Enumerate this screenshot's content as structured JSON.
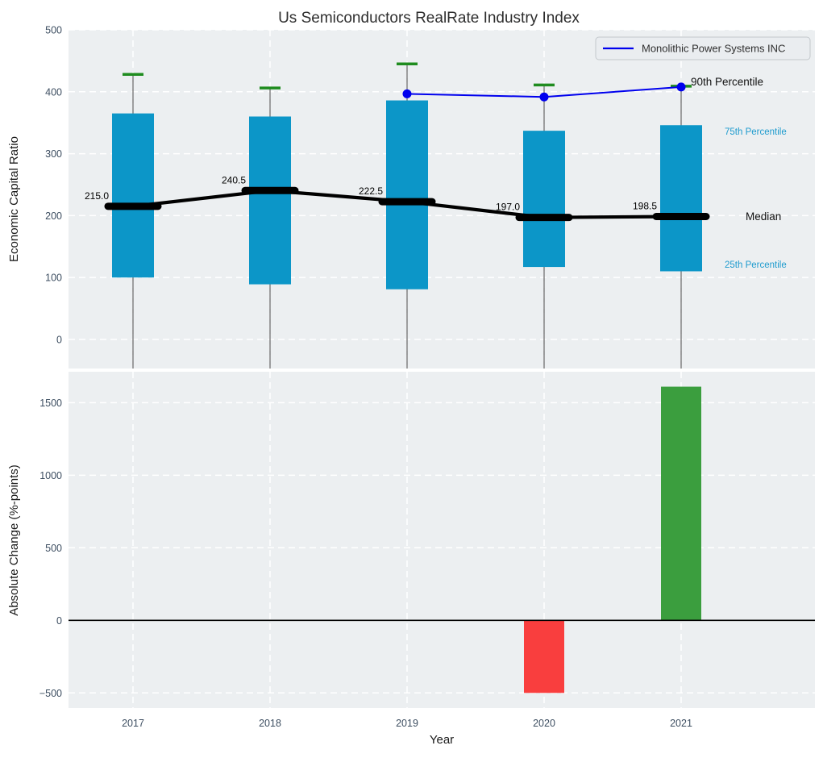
{
  "title": "Us Semiconductors RealRate Industry Index",
  "legend": {
    "label": "Monolithic Power Systems INC",
    "line_color": "#0000ee"
  },
  "colors": {
    "figure_bg": "#ffffff",
    "axes_bg": "#eceff1",
    "grid": "#ffffff",
    "box_fill": "#0c96c8",
    "median_color": "#000000",
    "whisker_line": "#707070",
    "cap_color": "#1f8c1f",
    "company_line": "#0000ee",
    "bar_positive": "#3b9e3e",
    "bar_negative": "#f93e3e",
    "tick_text": "#3c4d60",
    "annotation_cyan": "#1e9bce",
    "annotation_black": "#111111",
    "zero_line": "#000000"
  },
  "annotations": {
    "p90": {
      "label": "90th Percentile"
    },
    "p75": {
      "label": "75th Percentile"
    },
    "median": {
      "label": "Median"
    },
    "p25": {
      "label": "25th Percentile"
    }
  },
  "chart_data": [
    {
      "type": "box",
      "title": "Us Semiconductors RealRate Industry Index",
      "ylabel": "Economic Capital Ratio",
      "categories": [
        "2017",
        "2018",
        "2019",
        "2020",
        "2021"
      ],
      "yticks": [
        0,
        100,
        200,
        300,
        400,
        500
      ],
      "ylim": [
        -47,
        500
      ],
      "grid": true,
      "legend_position": "upper right",
      "whisker_low_clipped_below_axis": true,
      "boxes": [
        {
          "year": "2017",
          "p90": 428,
          "q75": 365,
          "median": 215.0,
          "q25": 100,
          "p10": null,
          "label": "215.0"
        },
        {
          "year": "2018",
          "p90": 406,
          "q75": 360,
          "median": 240.5,
          "q25": 89,
          "p10": null,
          "label": "240.5"
        },
        {
          "year": "2019",
          "p90": 445,
          "q75": 386,
          "median": 222.5,
          "q25": 81,
          "p10": null,
          "label": "222.5"
        },
        {
          "year": "2020",
          "p90": 411,
          "q75": 337,
          "median": 197.0,
          "q25": 117,
          "p10": null,
          "label": "197.0"
        },
        {
          "year": "2021",
          "p90": 409,
          "q75": 346,
          "median": 198.5,
          "q25": 110,
          "p10": null,
          "label": "198.5"
        }
      ],
      "series": [
        {
          "name": "Monolithic Power Systems INC",
          "x": [
            "2019",
            "2020",
            "2021"
          ],
          "values": [
            396.6,
            391.6,
            407.7
          ],
          "color": "#0000ee",
          "marker": "circle"
        }
      ]
    },
    {
      "type": "bar",
      "ylabel": "Absolute Change (%-points)",
      "xlabel": "Year",
      "categories": [
        "2017",
        "2018",
        "2019",
        "2020",
        "2021"
      ],
      "values": [
        null,
        null,
        null,
        -500,
        1610
      ],
      "yticks": [
        -500,
        0,
        500,
        1000,
        1500
      ],
      "ylim": [
        -604,
        1713
      ],
      "grid": true,
      "zero_line": true
    }
  ]
}
